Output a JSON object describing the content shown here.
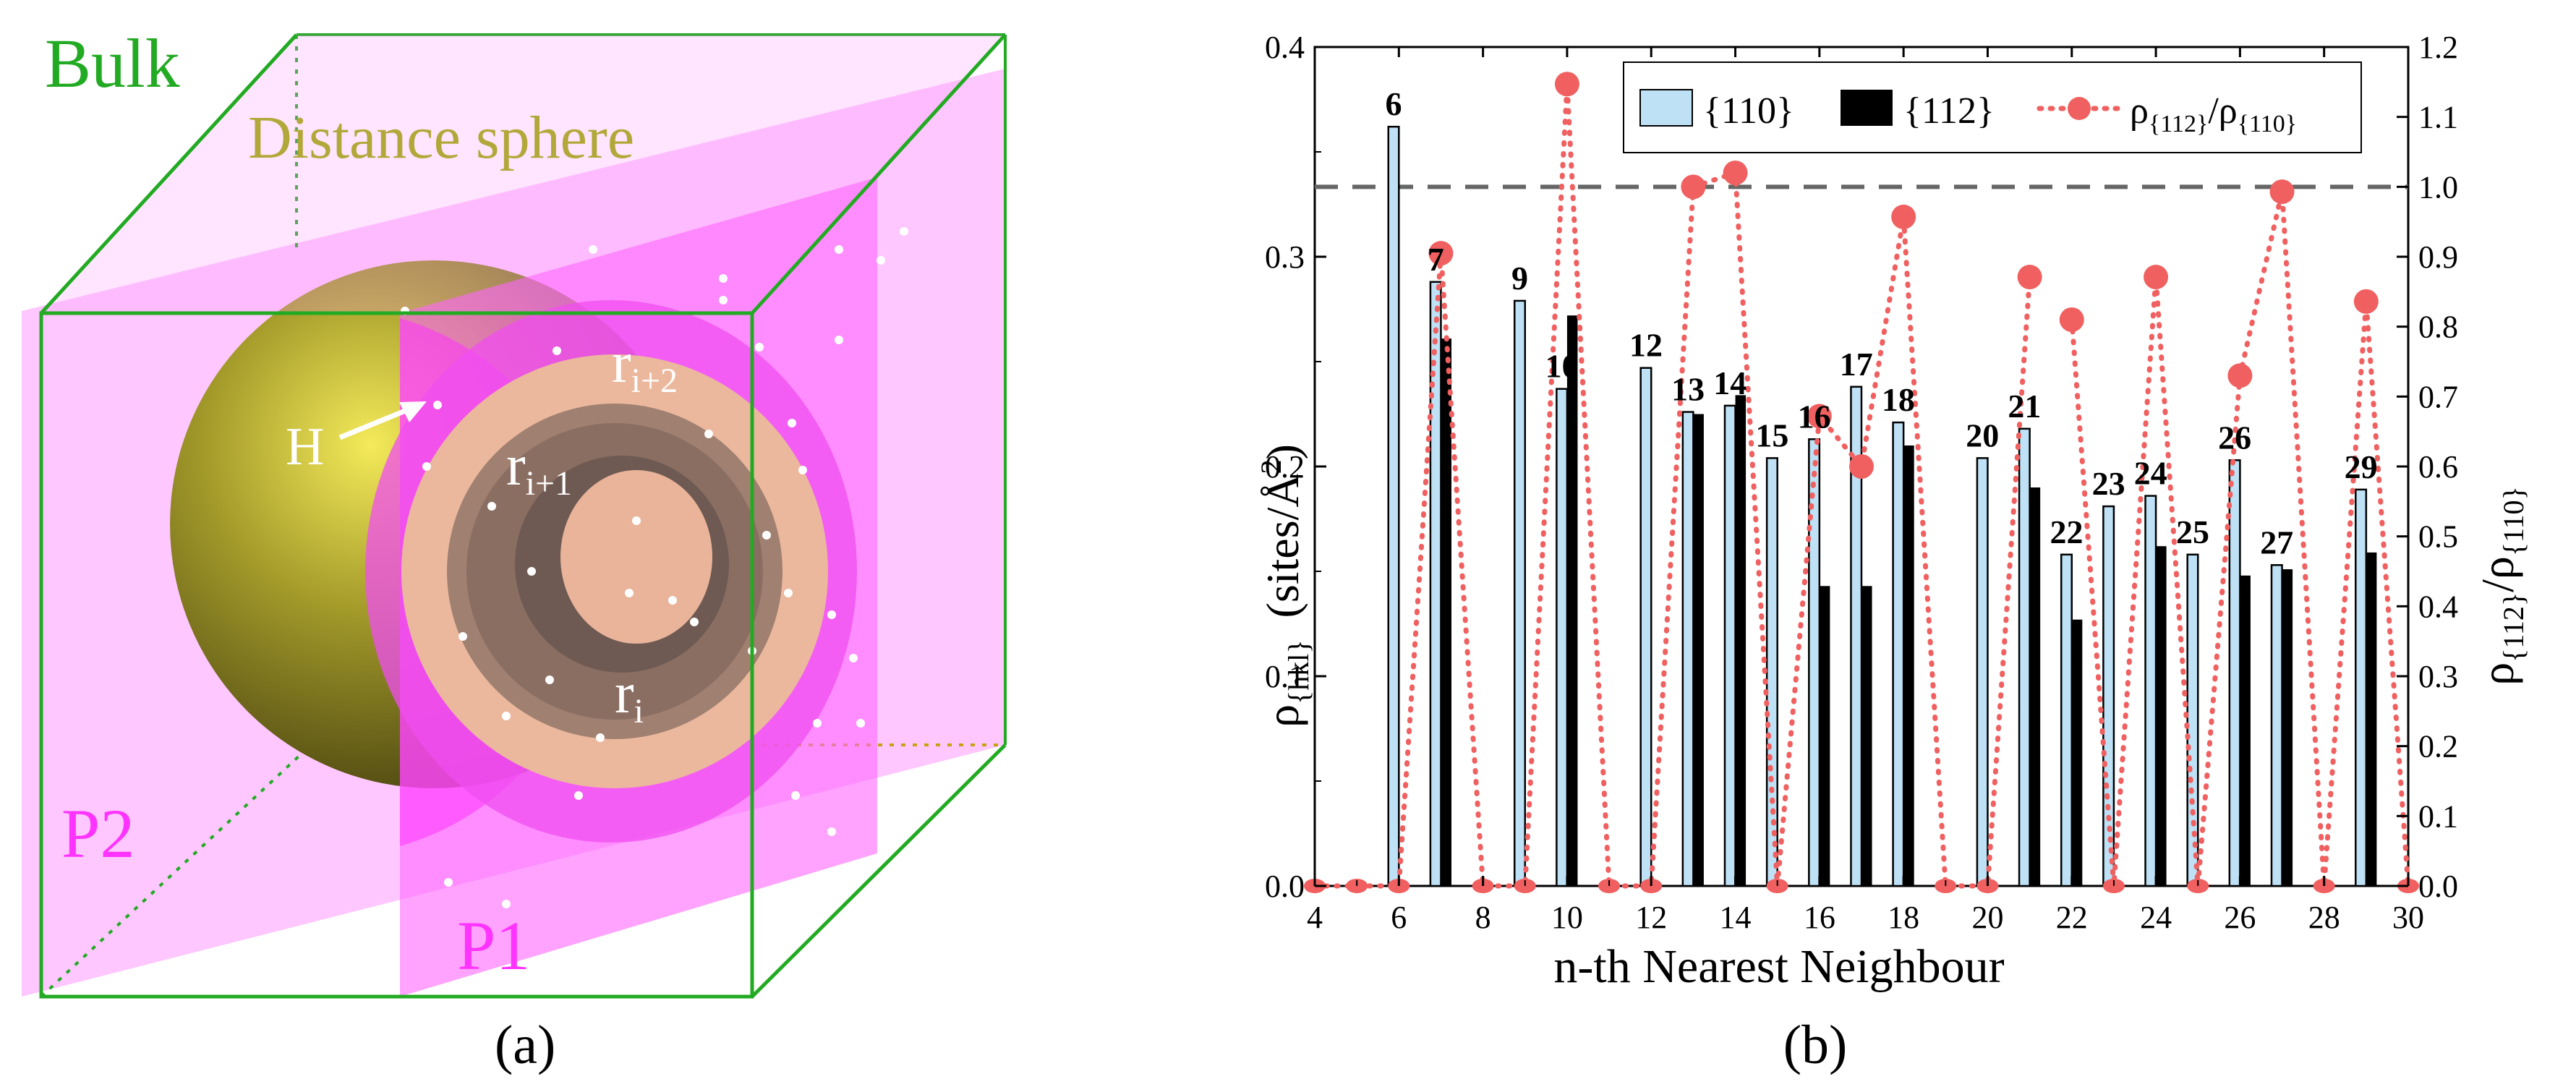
{
  "panel_a": {
    "caption": "(a)",
    "bulk_label": "Bulk",
    "sphere_label": "Distance sphere",
    "hydrogen_label": "H",
    "plane_p1_label": "P1",
    "plane_p2_label": "P2",
    "ring_inner_label": "r",
    "ring_inner_sub": "i",
    "ring_mid_label": "r",
    "ring_mid_sub": "i+1",
    "ring_outer_label": "r",
    "ring_outer_sub": "i+2",
    "colors": {
      "cube": "#22aa22",
      "plane": "#ff66ff",
      "sphere": "#a09a2a",
      "ring_light": "#e8b49c",
      "ring_dark": "#7a655c"
    }
  },
  "chart_data": {
    "type": "bar",
    "caption": "(b)",
    "xlabel": "n-th Nearest Neighbour",
    "ylabel_left_main": "ρ",
    "ylabel_left_sub": "{hkl}",
    "ylabel_left_units": "(sites/Å",
    "ylabel_left_units_sup": "2",
    "ylabel_left_units_close": ")",
    "ylabel_right_num": "ρ",
    "ylabel_right_num_sub": "{112}",
    "ylabel_right_sep": "/ρ",
    "ylabel_right_den_sub": "{110}",
    "xlim": [
      4,
      30
    ],
    "ylim_left": [
      0,
      0.4
    ],
    "ylim_right": [
      0,
      1.2
    ],
    "x_ticks": [
      "4",
      "6",
      "8",
      "10",
      "12",
      "14",
      "16",
      "18",
      "20",
      "22",
      "24",
      "26",
      "28",
      "30"
    ],
    "y_left_ticks": [
      "0.0",
      "0.1",
      "0.2",
      "0.3",
      "0.4"
    ],
    "y_right_ticks": [
      "0.0",
      "0.1",
      "0.2",
      "0.3",
      "0.4",
      "0.5",
      "0.6",
      "0.7",
      "0.8",
      "0.9",
      "1.0",
      "1.1",
      "1.2"
    ],
    "reference_line_right": 1.0,
    "legend": {
      "position": "top-right",
      "s110": "{110}",
      "s112": "{112}",
      "ratio_main": "ρ",
      "ratio_sub1": "{112}",
      "ratio_sep": "/ρ",
      "ratio_sub2": "{110}"
    },
    "series": [
      {
        "name": "{110}",
        "color": "#bfe1f5",
        "points": [
          [
            6,
            0.362
          ],
          [
            7,
            0.288
          ],
          [
            9,
            0.279
          ],
          [
            10,
            0.237
          ],
          [
            12,
            0.247
          ],
          [
            13,
            0.226
          ],
          [
            14,
            0.229
          ],
          [
            15,
            0.204
          ],
          [
            16,
            0.213
          ],
          [
            17,
            0.238
          ],
          [
            18,
            0.221
          ],
          [
            20,
            0.204
          ],
          [
            21,
            0.218
          ],
          [
            22,
            0.158
          ],
          [
            23,
            0.181
          ],
          [
            24,
            0.186
          ],
          [
            25,
            0.158
          ],
          [
            26,
            0.203
          ],
          [
            27,
            0.153
          ],
          [
            29,
            0.189
          ]
        ]
      },
      {
        "name": "{112}",
        "color": "#000000",
        "points": [
          [
            7,
            0.261
          ],
          [
            10,
            0.272
          ],
          [
            13,
            0.225
          ],
          [
            14,
            0.234
          ],
          [
            16,
            0.143
          ],
          [
            17,
            0.143
          ],
          [
            18,
            0.21
          ],
          [
            21,
            0.19
          ],
          [
            22,
            0.127
          ],
          [
            24,
            0.162
          ],
          [
            26,
            0.148
          ],
          [
            27,
            0.151
          ],
          [
            29,
            0.159
          ]
        ]
      },
      {
        "name": "ρ{112}/ρ{110}",
        "color": "#f06060",
        "points": [
          [
            4,
            0
          ],
          [
            5,
            0
          ],
          [
            6,
            0
          ],
          [
            7,
            0.905
          ],
          [
            8,
            0
          ],
          [
            9,
            0
          ],
          [
            10,
            1.147
          ],
          [
            11,
            0
          ],
          [
            12,
            0
          ],
          [
            13,
            1.0
          ],
          [
            14,
            1.02
          ],
          [
            15,
            0
          ],
          [
            16,
            0.672
          ],
          [
            17,
            0.6
          ],
          [
            18,
            0.957
          ],
          [
            19,
            0
          ],
          [
            20,
            0
          ],
          [
            21,
            0.871
          ],
          [
            22,
            0.81
          ],
          [
            23,
            0
          ],
          [
            24,
            0.871
          ],
          [
            25,
            0
          ],
          [
            26,
            0.73
          ],
          [
            27,
            0.993
          ],
          [
            28,
            0
          ],
          [
            29,
            0.836
          ],
          [
            30,
            0
          ]
        ]
      }
    ],
    "ratio_break_after_x": 21,
    "bar_labels": [
      {
        "x": 6,
        "text": "6"
      },
      {
        "x": 7,
        "text": "7"
      },
      {
        "x": 9,
        "text": "9"
      },
      {
        "x": 10,
        "text": "10"
      },
      {
        "x": 12,
        "text": "12"
      },
      {
        "x": 13,
        "text": "13"
      },
      {
        "x": 14,
        "text": "14"
      },
      {
        "x": 15,
        "text": "15"
      },
      {
        "x": 16,
        "text": "16"
      },
      {
        "x": 17,
        "text": "17"
      },
      {
        "x": 18,
        "text": "18"
      },
      {
        "x": 20,
        "text": "20"
      },
      {
        "x": 21,
        "text": "21"
      },
      {
        "x": 22,
        "text": "22"
      },
      {
        "x": 23,
        "text": "23"
      },
      {
        "x": 24,
        "text": "24"
      },
      {
        "x": 25,
        "text": "25"
      },
      {
        "x": 26,
        "text": "26"
      },
      {
        "x": 27,
        "text": "27"
      },
      {
        "x": 29,
        "text": "29"
      }
    ]
  }
}
